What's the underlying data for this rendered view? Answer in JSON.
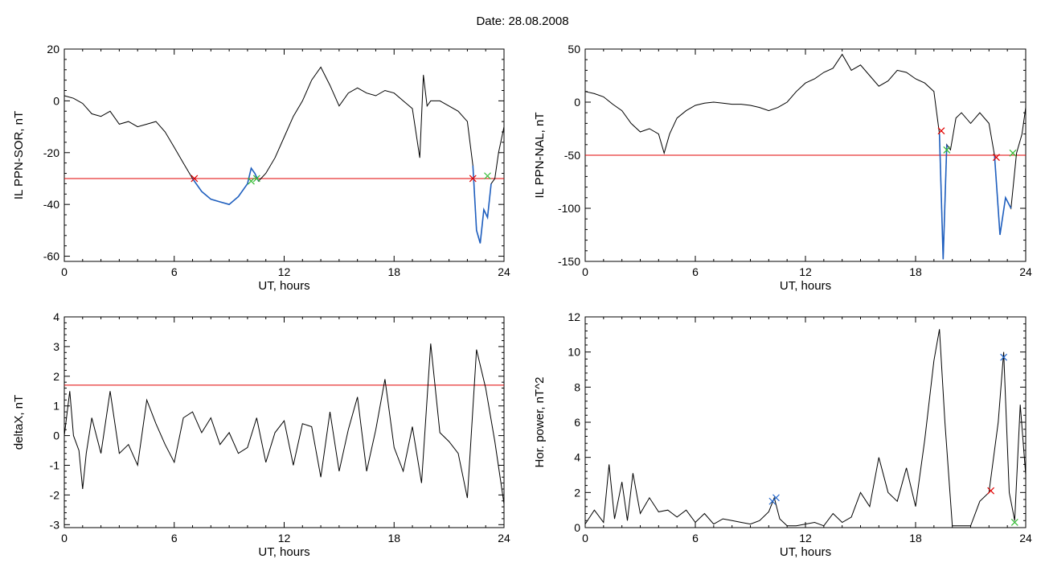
{
  "figure": {
    "date_label": "Date:",
    "date_value": "28.08.2008"
  },
  "colors": {
    "trace": "#000000",
    "highlight": "#1f5fbf",
    "threshold": "#e00000",
    "cross_red": "#e00000",
    "cross_green": "#33bb33",
    "cross_blue": "#2266cc"
  },
  "chart_data": [
    {
      "type": "line",
      "xlabel": "UT, hours",
      "ylabel": "IL PPN-SOR, nT",
      "xlim": [
        0,
        24
      ],
      "ylim": [
        -62,
        20
      ],
      "xticks": [
        0,
        6,
        12,
        18,
        24
      ],
      "yticks": [
        -60,
        -40,
        -20,
        0,
        20
      ],
      "threshold": -30,
      "series": [
        {
          "x": [
            0,
            0.5,
            1,
            1.5,
            2,
            2.5,
            3,
            3.5,
            4,
            4.5,
            5,
            5.5,
            6,
            6.5,
            7,
            7.5,
            8,
            8.5,
            9,
            9.5,
            10,
            10.2,
            10.4,
            10.6,
            11,
            11.5,
            12,
            12.5,
            13,
            13.5,
            14,
            14.5,
            15,
            15.5,
            16,
            16.5,
            17,
            17.5,
            18,
            18.5,
            19,
            19.4,
            19.6,
            19.8,
            20,
            20.5,
            21,
            21.5,
            22,
            22.3,
            22.5,
            22.7,
            22.9,
            23.1,
            23.3,
            23.5,
            23.7,
            24
          ],
          "y": [
            2,
            1,
            -1,
            -5,
            -6,
            -4,
            -9,
            -8,
            -10,
            -9,
            -8,
            -12,
            -18,
            -24,
            -30,
            -35,
            -38,
            -39,
            -40,
            -37,
            -32,
            -26,
            -28,
            -31,
            -28,
            -22,
            -14,
            -6,
            0,
            8,
            13,
            6,
            -2,
            3,
            5,
            3,
            2,
            4,
            3,
            0,
            -3,
            -22,
            10,
            -2,
            0,
            0,
            -2,
            -4,
            -8,
            -25,
            -50,
            -55,
            -42,
            -45,
            -32,
            -30,
            -20,
            -10
          ]
        }
      ],
      "highlight_ranges": [
        [
          7,
          10.6
        ],
        [
          22.3,
          23.3
        ]
      ],
      "markers": [
        {
          "x": 7.1,
          "y": -30,
          "color": "red"
        },
        {
          "x": 10.2,
          "y": -31,
          "color": "green"
        },
        {
          "x": 10.5,
          "y": -30,
          "color": "green"
        },
        {
          "x": 22.3,
          "y": -30,
          "color": "red"
        },
        {
          "x": 23.1,
          "y": -29,
          "color": "green"
        }
      ]
    },
    {
      "type": "line",
      "xlabel": "UT, hours",
      "ylabel": "IL PPN-NAL, nT",
      "xlim": [
        0,
        24
      ],
      "ylim": [
        -150,
        50
      ],
      "xticks": [
        0,
        6,
        12,
        18,
        24
      ],
      "yticks": [
        -150,
        -100,
        -50,
        0,
        50
      ],
      "threshold": -50,
      "series": [
        {
          "x": [
            0,
            0.5,
            1,
            1.5,
            2,
            2.5,
            3,
            3.5,
            4,
            4.3,
            4.6,
            5,
            5.5,
            6,
            6.5,
            7,
            7.5,
            8,
            8.5,
            9,
            9.5,
            10,
            10.5,
            11,
            11.5,
            12,
            12.5,
            13,
            13.5,
            14,
            14.5,
            15,
            15.5,
            16,
            16.5,
            17,
            17.5,
            18,
            18.5,
            19,
            19.3,
            19.5,
            19.7,
            19.9,
            20.2,
            20.5,
            21,
            21.5,
            22,
            22.3,
            22.6,
            22.9,
            23.2,
            23.5,
            23.8,
            24
          ],
          "y": [
            10,
            8,
            5,
            -2,
            -8,
            -20,
            -28,
            -25,
            -30,
            -48,
            -30,
            -15,
            -8,
            -3,
            -1,
            0,
            -1,
            -2,
            -2,
            -3,
            -5,
            -8,
            -5,
            0,
            10,
            18,
            22,
            28,
            32,
            45,
            30,
            35,
            25,
            15,
            20,
            30,
            28,
            22,
            18,
            10,
            -30,
            -148,
            -40,
            -45,
            -15,
            -10,
            -20,
            -10,
            -20,
            -50,
            -125,
            -90,
            -100,
            -48,
            -30,
            -5
          ]
        }
      ],
      "highlight_ranges": [
        [
          19.3,
          19.7
        ],
        [
          22.3,
          23.2
        ]
      ],
      "markers": [
        {
          "x": 19.4,
          "y": -27,
          "color": "red"
        },
        {
          "x": 19.7,
          "y": -45,
          "color": "green"
        },
        {
          "x": 22.4,
          "y": -52,
          "color": "red"
        },
        {
          "x": 23.3,
          "y": -48,
          "color": "green"
        }
      ]
    },
    {
      "type": "line",
      "xlabel": "UT, hours",
      "ylabel": "deltaX, nT",
      "xlim": [
        0,
        24
      ],
      "ylim": [
        -3.1,
        4
      ],
      "xticks": [
        0,
        6,
        12,
        18,
        24
      ],
      "yticks": [
        -3,
        -2,
        -1,
        0,
        1,
        2,
        3,
        4
      ],
      "threshold": 1.7,
      "series": [
        {
          "x": [
            0,
            0.3,
            0.5,
            0.8,
            1,
            1.2,
            1.5,
            2,
            2.5,
            3,
            3.5,
            4,
            4.5,
            5,
            5.5,
            6,
            6.5,
            7,
            7.5,
            8,
            8.5,
            9,
            9.5,
            10,
            10.5,
            11,
            11.5,
            12,
            12.5,
            13,
            13.5,
            14,
            14.5,
            15,
            15.5,
            16,
            16.5,
            17,
            17.5,
            18,
            18.5,
            19,
            19.5,
            20,
            20.5,
            21,
            21.5,
            22,
            22.5,
            23,
            23.5,
            24
          ],
          "y": [
            0,
            1.5,
            0,
            -0.5,
            -1.8,
            -0.6,
            0.6,
            -0.6,
            1.5,
            -0.6,
            -0.3,
            -1.0,
            1.2,
            0.4,
            -0.3,
            -0.9,
            0.6,
            0.8,
            0.1,
            0.6,
            -0.3,
            0.1,
            -0.6,
            -0.4,
            0.6,
            -0.9,
            0.1,
            0.5,
            -1.0,
            0.4,
            0.3,
            -1.4,
            0.8,
            -1.2,
            0.2,
            1.3,
            -1.2,
            0.2,
            1.9,
            -0.4,
            -1.2,
            0.3,
            -1.6,
            3.1,
            0.1,
            -0.2,
            -0.6,
            -2.1,
            2.9,
            1.6,
            -0.2,
            -2.3
          ]
        }
      ],
      "highlight_ranges": [],
      "markers": []
    },
    {
      "type": "line",
      "xlabel": "UT, hours",
      "ylabel": "Hor. power, nT^2",
      "xlim": [
        0,
        24
      ],
      "ylim": [
        0,
        12
      ],
      "xticks": [
        0,
        6,
        12,
        18,
        24
      ],
      "yticks": [
        0,
        2,
        4,
        6,
        8,
        10,
        12
      ],
      "threshold": null,
      "series": [
        {
          "x": [
            0,
            0.5,
            1,
            1.3,
            1.6,
            2,
            2.3,
            2.6,
            3,
            3.5,
            4,
            4.5,
            5,
            5.5,
            6,
            6.5,
            7,
            7.5,
            8,
            8.5,
            9,
            9.5,
            10,
            10.3,
            10.6,
            11,
            11.5,
            12,
            12.5,
            13,
            13.5,
            14,
            14.5,
            15,
            15.5,
            16,
            16.5,
            17,
            17.5,
            18,
            18.5,
            19,
            19.3,
            19.6,
            20,
            20.5,
            21,
            21.5,
            22,
            22.5,
            22.8,
            23.1,
            23.4,
            23.7,
            24
          ],
          "y": [
            0.2,
            1.0,
            0.3,
            3.6,
            0.5,
            2.6,
            0.4,
            3.1,
            0.8,
            1.7,
            0.9,
            1.0,
            0.6,
            1.0,
            0.3,
            0.8,
            0.2,
            0.5,
            0.4,
            0.3,
            0.2,
            0.4,
            0.9,
            1.7,
            0.5,
            0.1,
            0.1,
            0.2,
            0.3,
            0.1,
            0.8,
            0.3,
            0.6,
            2.0,
            1.2,
            4.0,
            2.0,
            1.5,
            3.4,
            1.2,
            5.0,
            9.5,
            11.3,
            6.0,
            0.1,
            0.1,
            0.1,
            1.5,
            2.0,
            6.0,
            10.0,
            2.0,
            0.4,
            7.0,
            3.0
          ]
        }
      ],
      "highlight_ranges": [],
      "markers": [
        {
          "x": 10.2,
          "y": 1.5,
          "color": "blue"
        },
        {
          "x": 10.4,
          "y": 1.7,
          "color": "blue"
        },
        {
          "x": 22.1,
          "y": 2.1,
          "color": "red"
        },
        {
          "x": 22.8,
          "y": 9.7,
          "color": "blue"
        },
        {
          "x": 23.4,
          "y": 0.3,
          "color": "green"
        }
      ]
    }
  ]
}
